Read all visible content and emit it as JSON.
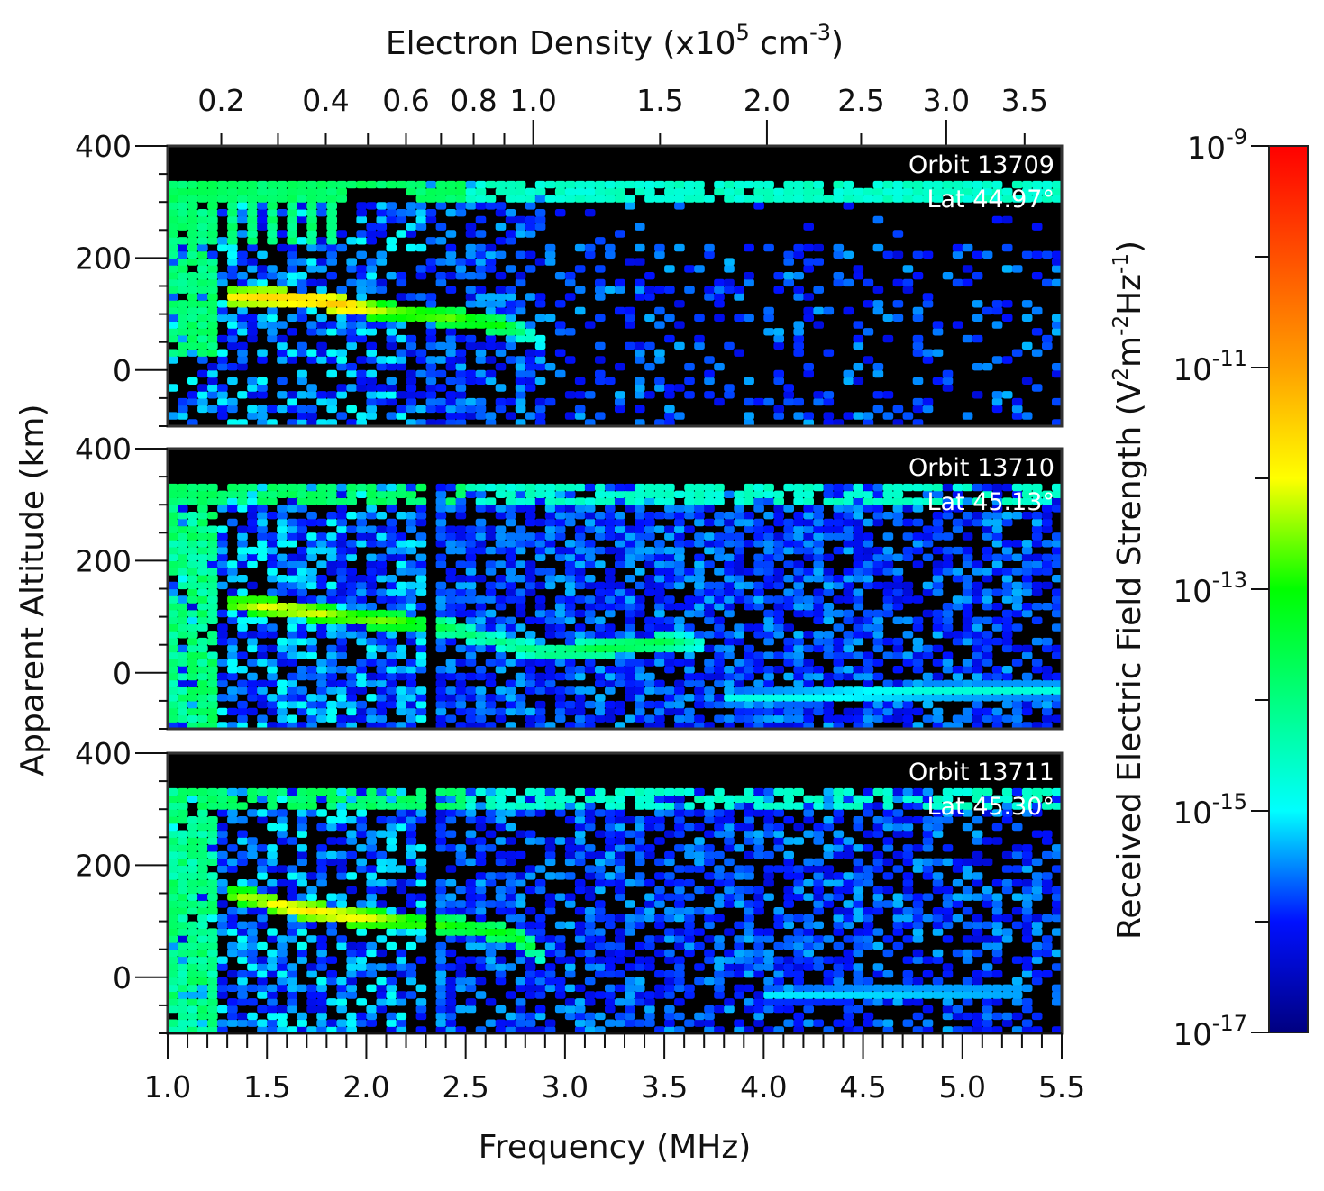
{
  "chart_data": {
    "type": "heatmap",
    "top_axis": {
      "title_parts": [
        "Electron Density (x10",
        "5",
        " cm",
        "-3",
        ")"
      ],
      "tick_labels": [
        "0.2",
        "0.4",
        "0.6",
        "0.8",
        "1.0",
        "1.5",
        "2.0",
        "2.5",
        "3.0",
        "3.5"
      ],
      "tick_values": [
        0.2,
        0.4,
        0.6,
        0.8,
        1.0,
        1.5,
        2.0,
        2.5,
        3.0,
        3.5
      ],
      "minor_tick_values": [
        0.3,
        0.5,
        0.7,
        0.9
      ]
    },
    "xaxis": {
      "title": "Frequency (MHz)",
      "range": [
        1.0,
        5.5
      ],
      "tick_labels": [
        "1.0",
        "1.5",
        "2.0",
        "2.5",
        "3.0",
        "3.5",
        "4.0",
        "4.5",
        "5.0",
        "5.5"
      ],
      "tick_values": [
        1.0,
        1.5,
        2.0,
        2.5,
        3.0,
        3.5,
        4.0,
        4.5,
        5.0,
        5.5
      ]
    },
    "yaxis": {
      "title": "Apparent Altitude (km)",
      "range": [
        -100,
        400
      ],
      "tick_labels": [
        "400",
        "200",
        "0"
      ],
      "tick_values": [
        400,
        200,
        0
      ]
    },
    "colorbar": {
      "title_parts": [
        "Received Electric Field Strength (V",
        "2",
        "m",
        "-2",
        "Hz",
        "-1",
        ")"
      ],
      "scale": "log",
      "range": [
        1e-17,
        1e-09
      ],
      "tick_labels": [
        {
          "base": "10",
          "exp": "-9"
        },
        {
          "base": "10",
          "exp": "-11"
        },
        {
          "base": "10",
          "exp": "-13"
        },
        {
          "base": "10",
          "exp": "-15"
        },
        {
          "base": "10",
          "exp": "-17"
        }
      ],
      "tick_exponents": [
        -9,
        -11,
        -13,
        -15,
        -17
      ],
      "colors": [
        "#000080",
        "#0010ff",
        "#00ffff",
        "#00ff80",
        "#00ff00",
        "#ffff00",
        "#ffa000",
        "#ff0000"
      ],
      "below_range_color": "#000000"
    },
    "panels": [
      {
        "orbit": "Orbit 13709",
        "lat": "Lat  44.97°",
        "data_top_km": 335,
        "echo_traces": [
          {
            "points": [
              [
                1.3,
                130,
                -11.8
              ],
              [
                1.5,
                130,
                -11.5
              ],
              [
                1.75,
                125,
                -11.4
              ],
              [
                1.9,
                115,
                -11.3
              ],
              [
                2.1,
                105,
                -12.4
              ],
              [
                2.4,
                95,
                -12.6
              ],
              [
                2.7,
                80,
                -13.0
              ],
              [
                2.8,
                68,
                -14.0
              ],
              [
                2.9,
                45,
                -14.8
              ]
            ]
          }
        ]
      },
      {
        "orbit": "Orbit 13710",
        "lat": "Lat  45.13°",
        "data_top_km": 335,
        "echo_traces": [
          {
            "points": [
              [
                1.3,
                125,
                -12.5
              ],
              [
                1.5,
                118,
                -12.0
              ],
              [
                1.7,
                110,
                -12.0
              ],
              [
                1.9,
                100,
                -12.4
              ],
              [
                2.2,
                90,
                -12.6
              ],
              [
                2.4,
                82,
                -13.5
              ],
              [
                2.6,
                62,
                -14.0
              ],
              [
                2.9,
                35,
                -13.8
              ],
              [
                3.2,
                45,
                -13.4
              ],
              [
                3.5,
                55,
                -13.4
              ],
              [
                3.7,
                52,
                -14.5
              ]
            ]
          },
          {
            "points": [
              [
                3.8,
                -45,
                -14.8
              ],
              [
                4.3,
                -40,
                -14.7
              ],
              [
                4.8,
                -33,
                -14.6
              ],
              [
                5.5,
                -30,
                -14.7
              ]
            ]
          }
        ]
      },
      {
        "orbit": "Orbit 13711",
        "lat": "Lat  45.30°",
        "data_top_km": 335,
        "echo_traces": [
          {
            "points": [
              [
                1.3,
                150,
                -12.5
              ],
              [
                1.5,
                135,
                -12.0
              ],
              [
                1.6,
                125,
                -11.7
              ],
              [
                1.9,
                110,
                -11.8
              ],
              [
                2.2,
                100,
                -12.5
              ],
              [
                2.5,
                90,
                -13.0
              ],
              [
                2.75,
                75,
                -13.0
              ],
              [
                2.85,
                50,
                -13.6
              ],
              [
                2.9,
                30,
                -14.5
              ]
            ]
          },
          {
            "points": [
              [
                4.0,
                -30,
                -15.0
              ],
              [
                4.6,
                -27,
                -14.9
              ],
              [
                5.3,
                -25,
                -15.0
              ]
            ]
          }
        ]
      }
    ]
  }
}
